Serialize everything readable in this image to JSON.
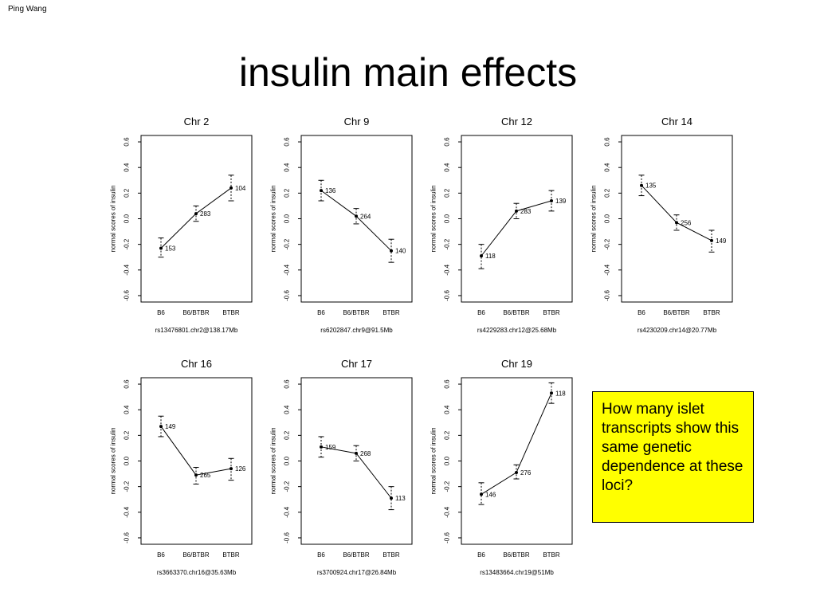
{
  "author": "Ping Wang",
  "title": "insulin main effects",
  "callout": "How many islet transcripts show this same genetic dependence at these loci?",
  "chart_data": [
    {
      "type": "line",
      "title": "Chr 2",
      "xlabel": "rs13476801.chr2@138.17Mb",
      "ylabel": "normal scores of insulin",
      "categories": [
        "B6",
        "B6/BTBR",
        "BTBR"
      ],
      "ylim": [
        -0.65,
        0.65
      ],
      "yticks": [
        "-0.6",
        "-0.4",
        "-0.2",
        "0.0",
        "0.2",
        "0.4",
        "0.6"
      ],
      "values": [
        -0.23,
        0.04,
        0.24
      ],
      "upper": [
        -0.15,
        0.1,
        0.34
      ],
      "lower": [
        -0.3,
        -0.02,
        0.14
      ],
      "counts": [
        "153",
        "283",
        "104"
      ]
    },
    {
      "type": "line",
      "title": "Chr 9",
      "xlabel": "rs6202847.chr9@91.5Mb",
      "ylabel": "normal scores of insulin",
      "categories": [
        "B6",
        "B6/BTBR",
        "BTBR"
      ],
      "ylim": [
        -0.65,
        0.65
      ],
      "yticks": [
        "-0.6",
        "-0.4",
        "-0.2",
        "0.0",
        "0.2",
        "0.4",
        "0.6"
      ],
      "values": [
        0.22,
        0.02,
        -0.25
      ],
      "upper": [
        0.3,
        0.08,
        -0.16
      ],
      "lower": [
        0.14,
        -0.04,
        -0.34
      ],
      "counts": [
        "136",
        "264",
        "140"
      ]
    },
    {
      "type": "line",
      "title": "Chr 12",
      "xlabel": "rs4229283.chr12@25.68Mb",
      "ylabel": "normal scores of insulin",
      "categories": [
        "B6",
        "B6/BTBR",
        "BTBR"
      ],
      "ylim": [
        -0.65,
        0.65
      ],
      "yticks": [
        "-0.6",
        "-0.4",
        "-0.2",
        "0.0",
        "0.2",
        "0.4",
        "0.6"
      ],
      "values": [
        -0.29,
        0.06,
        0.14
      ],
      "upper": [
        -0.2,
        0.12,
        0.22
      ],
      "lower": [
        -0.39,
        0.0,
        0.06
      ],
      "counts": [
        "118",
        "283",
        "139"
      ]
    },
    {
      "type": "line",
      "title": "Chr 14",
      "xlabel": "rs4230209.chr14@20.77Mb",
      "ylabel": "normal scores of insulin",
      "categories": [
        "B6",
        "B6/BTBR",
        "BTBR"
      ],
      "ylim": [
        -0.65,
        0.65
      ],
      "yticks": [
        "-0.6",
        "-0.4",
        "-0.2",
        "0.0",
        "0.2",
        "0.4",
        "0.6"
      ],
      "values": [
        0.26,
        -0.03,
        -0.17
      ],
      "upper": [
        0.34,
        0.03,
        -0.09
      ],
      "lower": [
        0.18,
        -0.09,
        -0.26
      ],
      "counts": [
        "135",
        "256",
        "149"
      ]
    },
    {
      "type": "line",
      "title": "Chr 16",
      "xlabel": "rs3663370.chr16@35.63Mb",
      "ylabel": "normal scores of insulin",
      "categories": [
        "B6",
        "B6/BTBR",
        "BTBR"
      ],
      "ylim": [
        -0.65,
        0.65
      ],
      "yticks": [
        "-0.6",
        "-0.4",
        "-0.2",
        "0.0",
        "0.2",
        "0.4",
        "0.6"
      ],
      "values": [
        0.27,
        -0.11,
        -0.06
      ],
      "upper": [
        0.35,
        -0.05,
        0.02
      ],
      "lower": [
        0.19,
        -0.18,
        -0.15
      ],
      "counts": [
        "149",
        "265",
        "126"
      ]
    },
    {
      "type": "line",
      "title": "Chr 17",
      "xlabel": "rs3700924.chr17@26.84Mb",
      "ylabel": "normal scores of insulin",
      "categories": [
        "B6",
        "B6/BTBR",
        "BTBR"
      ],
      "ylim": [
        -0.65,
        0.65
      ],
      "yticks": [
        "-0.6",
        "-0.4",
        "-0.2",
        "0.0",
        "0.2",
        "0.4",
        "0.6"
      ],
      "values": [
        0.11,
        0.06,
        -0.29
      ],
      "upper": [
        0.19,
        0.12,
        -0.2
      ],
      "lower": [
        0.03,
        0.0,
        -0.38
      ],
      "counts": [
        "159",
        "268",
        "113"
      ]
    },
    {
      "type": "line",
      "title": "Chr 19",
      "xlabel": "rs13483664.chr19@51Mb",
      "ylabel": "normal scores of insulin",
      "categories": [
        "B6",
        "B6/BTBR",
        "BTBR"
      ],
      "ylim": [
        -0.65,
        0.65
      ],
      "yticks": [
        "-0.6",
        "-0.4",
        "-0.2",
        "0.0",
        "0.2",
        "0.4",
        "0.6"
      ],
      "values": [
        -0.26,
        -0.09,
        0.53
      ],
      "upper": [
        -0.17,
        -0.03,
        0.61
      ],
      "lower": [
        -0.34,
        -0.14,
        0.45
      ],
      "counts": [
        "146",
        "276",
        "118"
      ]
    }
  ]
}
